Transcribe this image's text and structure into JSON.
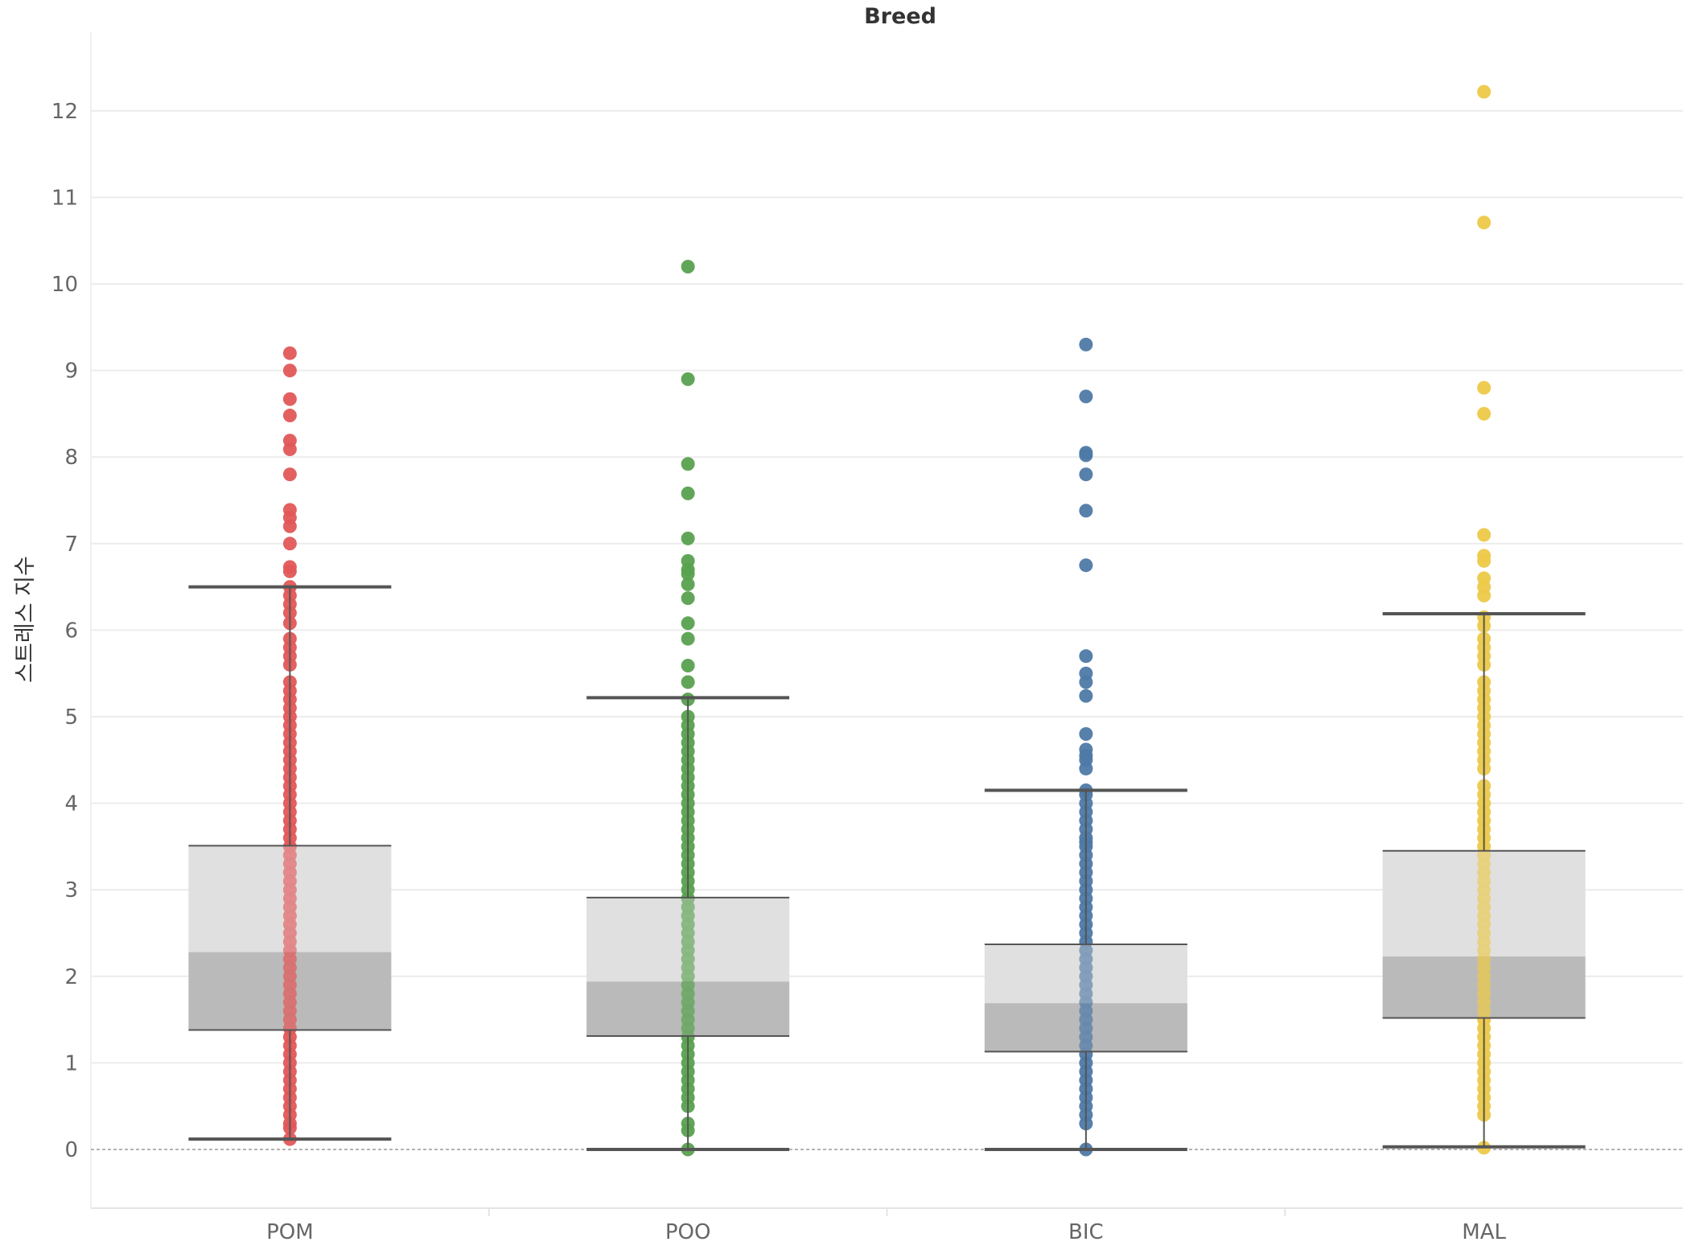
{
  "chart_data": {
    "type": "box",
    "title": "Breed",
    "xlabel": "",
    "ylabel": "스트레스 지수",
    "categories": [
      "POM",
      "POO",
      "BIC",
      "MAL"
    ],
    "ylim": [
      -0.7,
      12.7
    ],
    "yticks": [
      0,
      1,
      2,
      3,
      4,
      5,
      6,
      7,
      8,
      9,
      10,
      11,
      12
    ],
    "grid": true,
    "reference_line": 0,
    "colors": {
      "POM": "#e15759",
      "POO": "#59a14f",
      "BIC": "#4e79a7",
      "MAL": "#edc948",
      "box_upper": "#e0e0e0",
      "box_lower": "#bababa",
      "whisker": "#555555",
      "grid": "#ececec"
    },
    "boxes": [
      {
        "category": "POM",
        "whisker_low": 0.12,
        "q1": 1.38,
        "median": 2.28,
        "q3": 3.51,
        "whisker_high": 6.5
      },
      {
        "category": "POO",
        "whisker_low": 0.0,
        "q1": 1.31,
        "median": 1.94,
        "q3": 2.91,
        "whisker_high": 5.22
      },
      {
        "category": "BIC",
        "whisker_low": 0.0,
        "q1": 1.13,
        "median": 1.69,
        "q3": 2.37,
        "whisker_high": 4.15
      },
      {
        "category": "MAL",
        "whisker_low": 0.03,
        "q1": 1.52,
        "median": 2.23,
        "q3": 3.45,
        "whisker_high": 6.19
      }
    ],
    "points": {
      "POM": [
        9.2,
        9.0,
        8.67,
        8.48,
        8.19,
        8.09,
        7.8,
        7.39,
        7.3,
        7.2,
        7.0,
        6.73,
        6.68,
        6.5,
        6.4,
        6.3,
        6.2,
        6.08,
        5.9,
        5.8,
        5.7,
        5.6,
        5.4,
        5.3,
        5.2,
        5.1,
        5.0,
        4.9,
        4.8,
        4.7,
        4.6,
        4.5,
        4.4,
        4.3,
        4.2,
        4.1,
        4.0,
        3.9,
        3.8,
        3.7,
        3.6,
        3.5,
        3.4,
        3.3,
        3.2,
        3.1,
        3.0,
        2.9,
        2.8,
        2.7,
        2.6,
        2.5,
        2.4,
        2.3,
        2.2,
        2.1,
        2.0,
        1.9,
        1.8,
        1.7,
        1.6,
        1.5,
        1.4,
        1.3,
        1.2,
        1.1,
        1.0,
        0.9,
        0.8,
        0.7,
        0.6,
        0.5,
        0.4,
        0.3,
        0.25,
        0.12
      ],
      "POO": [
        10.2,
        8.9,
        7.92,
        7.58,
        7.06,
        6.8,
        6.7,
        6.65,
        6.53,
        6.37,
        6.08,
        5.9,
        5.59,
        5.4,
        5.2,
        5.0,
        4.9,
        4.8,
        4.7,
        4.6,
        4.5,
        4.4,
        4.3,
        4.2,
        4.1,
        4.0,
        3.9,
        3.8,
        3.7,
        3.6,
        3.5,
        3.4,
        3.3,
        3.2,
        3.1,
        3.0,
        2.9,
        2.8,
        2.7,
        2.6,
        2.5,
        2.4,
        2.3,
        2.2,
        2.1,
        2.0,
        1.9,
        1.8,
        1.7,
        1.6,
        1.5,
        1.4,
        1.3,
        1.2,
        1.1,
        1.0,
        0.9,
        0.8,
        0.7,
        0.6,
        0.5,
        0.3,
        0.22,
        0.0
      ],
      "BIC": [
        9.3,
        8.7,
        8.05,
        8.02,
        7.8,
        7.38,
        6.75,
        5.7,
        5.5,
        5.4,
        5.24,
        4.8,
        4.62,
        4.55,
        4.5,
        4.4,
        4.15,
        4.1,
        4.0,
        3.9,
        3.8,
        3.7,
        3.6,
        3.55,
        3.5,
        3.4,
        3.3,
        3.2,
        3.1,
        3.0,
        2.9,
        2.8,
        2.7,
        2.6,
        2.5,
        2.4,
        2.3,
        2.2,
        2.1,
        2.0,
        1.9,
        1.8,
        1.7,
        1.6,
        1.5,
        1.4,
        1.3,
        1.2,
        1.1,
        1.0,
        0.9,
        0.8,
        0.7,
        0.6,
        0.5,
        0.4,
        0.3,
        0.0
      ],
      "MAL": [
        12.22,
        10.71,
        8.8,
        8.5,
        7.1,
        6.86,
        6.8,
        6.6,
        6.5,
        6.4,
        6.15,
        6.05,
        5.9,
        5.8,
        5.7,
        5.6,
        5.4,
        5.3,
        5.2,
        5.1,
        5.0,
        4.9,
        4.8,
        4.7,
        4.6,
        4.5,
        4.4,
        4.2,
        4.1,
        4.0,
        3.9,
        3.8,
        3.7,
        3.6,
        3.5,
        3.4,
        3.3,
        3.2,
        3.1,
        3.0,
        2.9,
        2.8,
        2.7,
        2.6,
        2.5,
        2.4,
        2.3,
        2.2,
        2.1,
        2.0,
        1.9,
        1.8,
        1.7,
        1.6,
        1.5,
        1.4,
        1.3,
        1.2,
        1.1,
        1.0,
        0.9,
        0.8,
        0.7,
        0.6,
        0.5,
        0.4,
        0.02
      ]
    }
  }
}
